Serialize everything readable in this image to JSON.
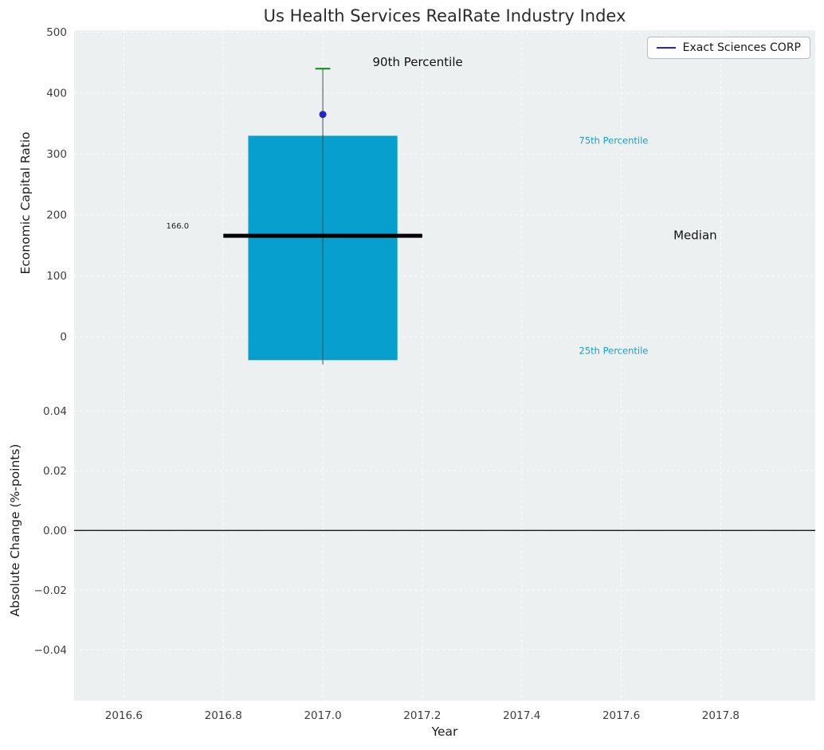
{
  "title": "Us Health Services RealRate Industry Index",
  "legend": {
    "label": "Exact Sciences CORP"
  },
  "xaxis": {
    "label": "Year",
    "xlim": [
      2016.5,
      2017.99
    ],
    "tick_values": [
      2016.6,
      2016.8,
      2017.0,
      2017.2,
      2017.4,
      2017.6,
      2017.8
    ],
    "tick_labels": [
      "2016.6",
      "2016.8",
      "2017.0",
      "2017.2",
      "2017.4",
      "2017.6",
      "2017.8"
    ]
  },
  "colors": {
    "plot_bg": "#edf0f1",
    "grid": "#f8fafa",
    "bar": "#079fce",
    "median": "#000000",
    "whisker": "#4a4a4a",
    "p90_cap": "#0b8a0b",
    "series": "#2424c8",
    "percentile_text": "#18a0c8",
    "tick_text": "#3d3d3d",
    "zero_line": "#000000"
  },
  "chart_data": [
    {
      "type": "box",
      "series_name": "Exact Sciences CORP",
      "ylabel": "Economic Capital Ratio",
      "ylim": [
        -48,
        503
      ],
      "ytick_values": [
        0,
        100,
        200,
        300,
        400,
        500
      ],
      "ytick_labels": [
        "0",
        "100",
        "200",
        "300",
        "400",
        "500"
      ],
      "box": {
        "x_center": 2017.0,
        "width": 0.3,
        "p25": -38,
        "p75": 330,
        "median": 166.0,
        "p90": 440,
        "whisker_low": -45,
        "median_halfwidth": 0.2,
        "cap_halfwidth": 0.015
      },
      "marker": {
        "x": 2017.0,
        "value": 365
      },
      "annotations": [
        {
          "name": "p90-label",
          "text": "90th Percentile",
          "x": 2017.1,
          "y": 444,
          "size": 15,
          "color": "#111111",
          "anchor": "start"
        },
        {
          "name": "p75-label",
          "text": "75th Percentile",
          "x": 2017.515,
          "y": 317,
          "size": 11.5,
          "color": "#18a0c8",
          "anchor": "start"
        },
        {
          "name": "median-label",
          "text": "Median",
          "x": 2017.705,
          "y": 160,
          "size": 15,
          "color": "#111111",
          "anchor": "start"
        },
        {
          "name": "p25-label",
          "text": "25th Percentile",
          "x": 2017.515,
          "y": -28,
          "size": 11.5,
          "color": "#18a0c8",
          "anchor": "start"
        },
        {
          "name": "median-value-label",
          "text": "166.0",
          "x": 2016.685,
          "y": 178,
          "size": 10,
          "color": "#222222",
          "anchor": "start"
        }
      ]
    },
    {
      "type": "line",
      "ylabel": "Absolute Change (%-points)",
      "ylim": [
        -0.057,
        0.055
      ],
      "ytick_values": [
        0.04,
        0.02,
        0,
        -0.02,
        -0.04
      ],
      "ytick_labels": [
        "0.04",
        "0.02",
        "0.00",
        "−0.02",
        "−0.04"
      ],
      "zero_line": 0
    }
  ]
}
